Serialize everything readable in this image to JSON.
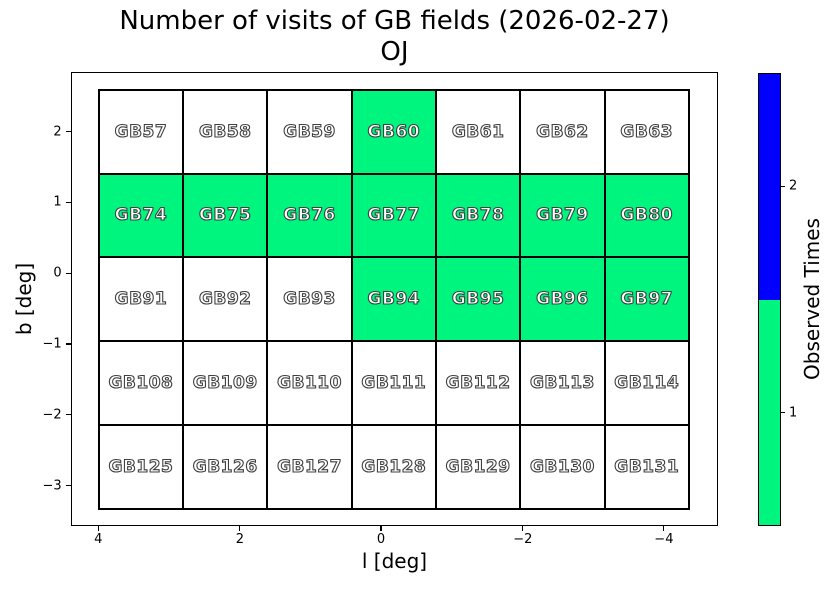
{
  "title": {
    "line1": "Number of visits of GB fields (2026-02-27)",
    "line2": "OJ"
  },
  "axes": {
    "xlabel": "l [deg]",
    "ylabel": "b [deg]",
    "x_ticks": [
      "4",
      "2",
      "0",
      "−2",
      "−4"
    ],
    "y_ticks": [
      "2",
      "1",
      "0",
      "−1",
      "−2",
      "−3"
    ]
  },
  "colorbar": {
    "label": "Observed Times",
    "ticks": [
      {
        "label": "2"
      },
      {
        "label": "1"
      }
    ]
  },
  "colors": {
    "observed_once_green": "#00f57e",
    "observed_twice_blue": "#0000ff",
    "unobserved_white": "#ffffff",
    "cell_border": "#000000",
    "label_text_fill": "#ffffff",
    "label_text_outline": "#3f3f3f"
  },
  "grid": {
    "rows": [
      {
        "labels": [
          "GB57",
          "GB58",
          "GB59",
          "GB60",
          "GB61",
          "GB62",
          "GB63"
        ],
        "observed": [
          0,
          0,
          0,
          1,
          0,
          0,
          0
        ]
      },
      {
        "labels": [
          "GB74",
          "GB75",
          "GB76",
          "GB77",
          "GB78",
          "GB79",
          "GB80"
        ],
        "observed": [
          1,
          1,
          1,
          1,
          1,
          1,
          1
        ]
      },
      {
        "labels": [
          "GB91",
          "GB92",
          "GB93",
          "GB94",
          "GB95",
          "GB96",
          "GB97"
        ],
        "observed": [
          0,
          0,
          0,
          1,
          1,
          1,
          1
        ]
      },
      {
        "labels": [
          "GB108",
          "GB109",
          "GB110",
          "GB111",
          "GB112",
          "GB113",
          "GB114"
        ],
        "observed": [
          0,
          0,
          0,
          0,
          0,
          0,
          0
        ]
      },
      {
        "labels": [
          "GB125",
          "GB126",
          "GB127",
          "GB128",
          "GB129",
          "GB130",
          "GB131"
        ],
        "observed": [
          0,
          0,
          0,
          0,
          0,
          0,
          0
        ]
      }
    ]
  },
  "chart_data": {
    "type": "heatmap",
    "title": "Number of visits of GB fields (2026-02-27)",
    "subtitle": "OJ",
    "xlabel": "l [deg]",
    "ylabel": "b [deg]",
    "colorbar_label": "Observed Times",
    "x_axis_inverted": true,
    "xlim": [
      4.6,
      -4.6
    ],
    "ylim": [
      -3.7,
      2.9
    ],
    "x_ticks": [
      4,
      2,
      0,
      -2,
      -4
    ],
    "y_ticks": [
      2,
      1,
      0,
      -1,
      -2,
      -3
    ],
    "field_size_deg": 1.2,
    "column_l_centers": [
      3.4,
      2.2,
      1.0,
      -0.2,
      -1.4,
      -2.6,
      -3.8
    ],
    "row_b_centers": [
      2.0,
      0.8,
      -0.4,
      -1.6,
      -2.8
    ],
    "rows": [
      {
        "b": 2.0,
        "fields": [
          "GB57",
          "GB58",
          "GB59",
          "GB60",
          "GB61",
          "GB62",
          "GB63"
        ],
        "visits": [
          0,
          0,
          0,
          1,
          0,
          0,
          0
        ]
      },
      {
        "b": 0.8,
        "fields": [
          "GB74",
          "GB75",
          "GB76",
          "GB77",
          "GB78",
          "GB79",
          "GB80"
        ],
        "visits": [
          1,
          1,
          1,
          1,
          1,
          1,
          1
        ]
      },
      {
        "b": -0.4,
        "fields": [
          "GB91",
          "GB92",
          "GB93",
          "GB94",
          "GB95",
          "GB96",
          "GB97"
        ],
        "visits": [
          0,
          0,
          0,
          1,
          1,
          1,
          1
        ]
      },
      {
        "b": -1.6,
        "fields": [
          "GB108",
          "GB109",
          "GB110",
          "GB111",
          "GB112",
          "GB113",
          "GB114"
        ],
        "visits": [
          0,
          0,
          0,
          0,
          0,
          0,
          0
        ]
      },
      {
        "b": -2.8,
        "fields": [
          "GB125",
          "GB126",
          "GB127",
          "GB128",
          "GB129",
          "GB130",
          "GB131"
        ],
        "visits": [
          0,
          0,
          0,
          0,
          0,
          0,
          0
        ]
      }
    ],
    "color_scale": {
      "1": "#00f57e",
      "2": "#0000ff",
      "0_unobserved": "#ffffff"
    },
    "legend_position": "right-colorbar",
    "grid_on": false
  }
}
